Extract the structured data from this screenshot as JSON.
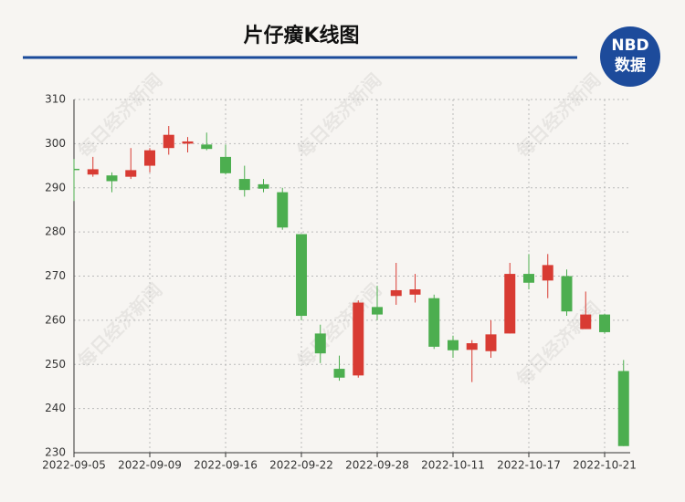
{
  "chart_data": {
    "type": "candlestick",
    "title": "片仔癀K线图",
    "logo": {
      "top": "NBD",
      "bottom": "数据"
    },
    "watermark": "每日经济新闻",
    "categories": [
      "2022-09-05",
      null,
      null,
      null,
      "2022-09-09",
      null,
      null,
      null,
      "2022-09-16",
      null,
      null,
      null,
      "2022-09-22",
      null,
      null,
      null,
      "2022-09-28",
      null,
      null,
      null,
      "2022-10-11",
      null,
      null,
      null,
      "2022-10-17",
      null,
      null,
      null,
      "2022-10-21",
      null
    ],
    "open": [
      294.3,
      293,
      292.8,
      292.5,
      295,
      299,
      300,
      299.8,
      297,
      292,
      290.8,
      289,
      279.5,
      257,
      249,
      247.5,
      263,
      265.5,
      265.8,
      265,
      255.5,
      253.3,
      253,
      257,
      270.5,
      269,
      270,
      258,
      261.3,
      248.5
    ],
    "high": [
      296.5,
      297,
      293.5,
      299,
      299,
      304,
      301.5,
      302.5,
      299.8,
      295,
      292,
      290,
      279.5,
      259,
      252,
      264.5,
      267.8,
      273,
      270.5,
      265.8,
      256.5,
      255.5,
      260,
      273,
      275,
      275,
      271.5,
      266.5,
      261.5,
      251
    ],
    "low": [
      287,
      292.5,
      289,
      292,
      293.5,
      297.5,
      298,
      298.5,
      293,
      288,
      289,
      280.5,
      260,
      250.3,
      246.3,
      247,
      260,
      263.5,
      264,
      253.5,
      251.5,
      246,
      251.5,
      257,
      267,
      265,
      261,
      258,
      257,
      231.5
    ],
    "close": [
      294,
      294.2,
      291.5,
      294,
      298.5,
      302,
      300.5,
      298.8,
      293.3,
      289.5,
      289.8,
      281,
      261,
      252.5,
      247,
      264,
      261.3,
      266.8,
      267,
      254,
      253.2,
      254.8,
      256.8,
      270.5,
      268.5,
      272.5,
      262,
      261.3,
      257.3,
      231.5
    ],
    "up_color": "#d83b33",
    "down_color": "#4cae4f",
    "ylim": [
      230,
      310
    ],
    "yticks": [
      230,
      240,
      250,
      260,
      270,
      280,
      290,
      300,
      310
    ],
    "grid": true
  }
}
